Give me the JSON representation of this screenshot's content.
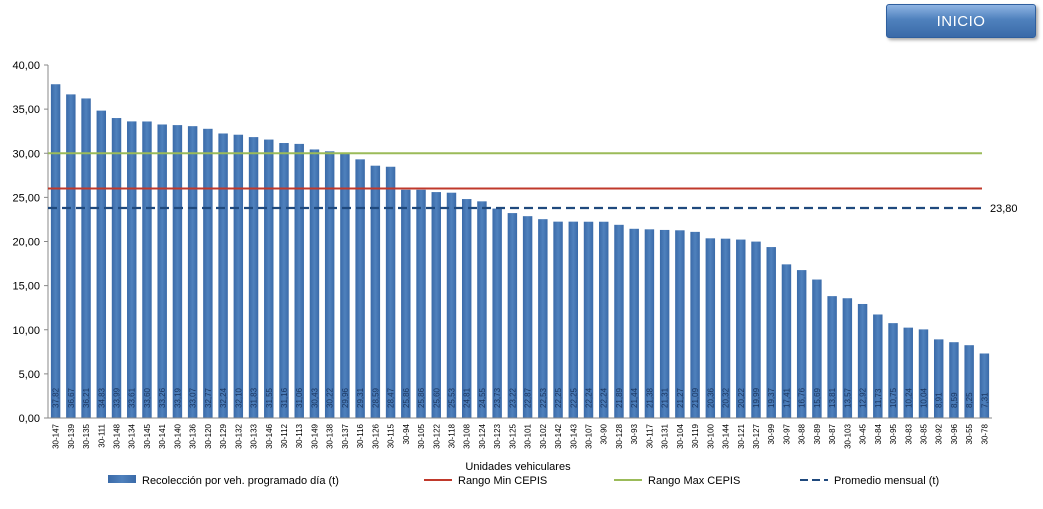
{
  "button": {
    "label": "INICIO"
  },
  "chart_data": {
    "type": "bar",
    "xlabel": "Unidades vehiculares",
    "ylabel": "",
    "ylim": [
      0,
      40
    ],
    "yticks": [
      "0,00",
      "5,00",
      "10,00",
      "15,00",
      "20,00",
      "25,00",
      "30,00",
      "35,00",
      "40,00"
    ],
    "categories": [
      "30-147",
      "30-139",
      "30-135",
      "30-111",
      "30-148",
      "30-134",
      "30-145",
      "30-141",
      "30-140",
      "30-136",
      "30-120",
      "30-129",
      "30-132",
      "30-133",
      "30-146",
      "30-112",
      "30-113",
      "30-149",
      "30-138",
      "30-137",
      "30-116",
      "30-126",
      "30-115",
      "30-94",
      "30-105",
      "30-122",
      "30-118",
      "30-108",
      "30-124",
      "30-123",
      "30-125",
      "30-101",
      "30-102",
      "30-142",
      "30-143",
      "30-107",
      "30-90",
      "30-128",
      "30-93",
      "30-117",
      "30-131",
      "30-104",
      "30-119",
      "30-100",
      "30-144",
      "30-121",
      "30-127",
      "30-99",
      "30-97",
      "30-88",
      "30-89",
      "30-87",
      "30-103",
      "30-45",
      "30-84",
      "30-95",
      "30-83",
      "30-85",
      "30-92",
      "30-96",
      "30-55",
      "30-78"
    ],
    "series": [
      {
        "name": "Recolección por veh. programado día (t)",
        "color": "#4f81bd",
        "values": [
          37.82,
          36.67,
          36.21,
          34.83,
          33.99,
          33.61,
          33.6,
          33.26,
          33.19,
          33.07,
          32.77,
          32.24,
          32.1,
          31.83,
          31.55,
          31.16,
          31.06,
          30.43,
          30.22,
          29.96,
          29.31,
          28.59,
          28.47,
          25.86,
          25.86,
          25.6,
          25.53,
          24.81,
          24.55,
          23.73,
          23.22,
          22.87,
          22.53,
          22.25,
          22.25,
          22.24,
          22.24,
          21.89,
          21.44,
          21.38,
          21.31,
          21.27,
          21.09,
          20.36,
          20.32,
          20.22,
          19.99,
          19.37,
          17.41,
          16.76,
          15.69,
          13.81,
          13.57,
          12.92,
          11.73,
          10.75,
          10.24,
          10.04,
          8.91,
          8.59,
          8.25,
          7.31
        ],
        "labels": [
          "37,82",
          "36,67",
          "36,21",
          "34,83",
          "33,99",
          "33,61",
          "33,60",
          "33,26",
          "33,19",
          "33,07",
          "32,77",
          "32,24",
          "32,10",
          "31,83",
          "31,55",
          "31,16",
          "31,06",
          "30,43",
          "30,22",
          "29,96",
          "29,31",
          "28,59",
          "28,47",
          "25,86",
          "25,86",
          "25,60",
          "25,53",
          "24,81",
          "24,55",
          "23,73",
          "23,22",
          "22,87",
          "22,53",
          "22,25",
          "22,25",
          "22,24",
          "22,24",
          "21,89",
          "21,44",
          "21,38",
          "21,31",
          "21,27",
          "21,09",
          "20,36",
          "20,32",
          "20,22",
          "19,99",
          "19,37",
          "17,41",
          "16,76",
          "15,69",
          "13,81",
          "13,57",
          "12,92",
          "11,73",
          "10,75",
          "10,24",
          "10,04",
          "8,91",
          "8,59",
          "8,25",
          "7,31"
        ]
      }
    ],
    "reference_lines": [
      {
        "name": "Rango Min CEPIS",
        "value": 26,
        "color": "#c0392b",
        "style": "solid"
      },
      {
        "name": "Rango Max CEPIS",
        "value": 30,
        "color": "#9bbb59",
        "style": "solid"
      },
      {
        "name": "Promedio mensual (t)",
        "value": 23.8,
        "color": "#1f497d",
        "style": "dashed",
        "label": "23,80"
      }
    ],
    "legend": "bottom"
  }
}
